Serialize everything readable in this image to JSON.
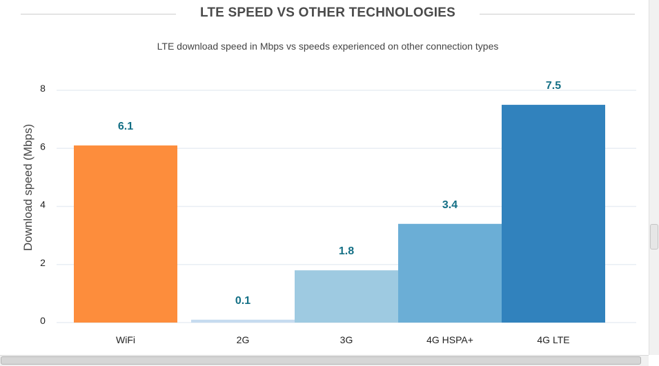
{
  "header": {
    "title": "LTE SPEED VS OTHER TECHNOLOGIES",
    "subtitle": "LTE download speed in Mbps vs speeds experienced on other connection types"
  },
  "colors": {
    "value_label": "#136f85",
    "grid": "#e8eef4",
    "title": "#4a4a4a"
  },
  "chart_data": {
    "type": "bar",
    "title": "LTE SPEED VS OTHER TECHNOLOGIES",
    "subtitle": "LTE download speed in Mbps vs speeds experienced on other connection types",
    "xlabel": "",
    "ylabel": "Download speed (Mbps)",
    "ylim": [
      0,
      8
    ],
    "yticks": [
      0,
      2,
      4,
      6,
      8
    ],
    "grid": true,
    "legend": "none",
    "categories": [
      "WiFi",
      "2G",
      "3G",
      "4G HSPA+",
      "4G LTE"
    ],
    "values": [
      6.1,
      0.1,
      1.8,
      3.4,
      7.5
    ],
    "value_labels": [
      "6.1",
      "0.1",
      "1.8",
      "3.4",
      "7.5"
    ],
    "bar_colors": [
      "#fd8d3c",
      "#c6dbef",
      "#9ecae1",
      "#6baed6",
      "#3182bd"
    ]
  }
}
